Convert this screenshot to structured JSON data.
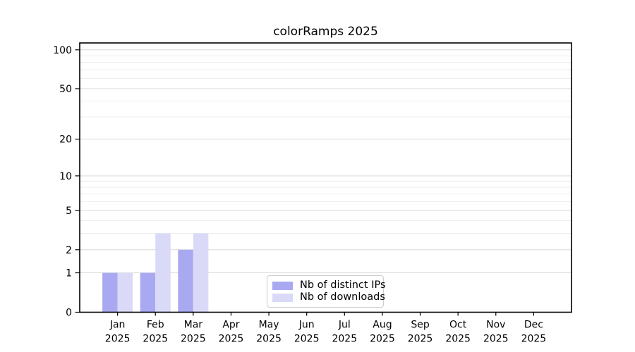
{
  "chart_data": {
    "type": "bar",
    "title": "colorRamps 2025",
    "categories": [
      "Jan",
      "Feb",
      "Mar",
      "Apr",
      "May",
      "Jun",
      "Jul",
      "Aug",
      "Sep",
      "Oct",
      "Nov",
      "Dec"
    ],
    "x_year_label": "2025",
    "series": [
      {
        "name": "Nb of distinct IPs",
        "color": "#a9a9f2",
        "values": [
          1,
          1,
          2,
          0,
          0,
          0,
          0,
          0,
          0,
          0,
          0,
          0
        ]
      },
      {
        "name": "Nb of downloads",
        "color": "#dadaf8",
        "values": [
          1,
          3,
          3,
          0,
          0,
          0,
          0,
          0,
          0,
          0,
          0,
          0
        ]
      }
    ],
    "y_scale": "log1p",
    "y_axis_ticks": [
      0,
      1,
      2,
      5,
      10,
      20,
      50,
      100
    ],
    "y_minor_gridlines": [
      3,
      4,
      6,
      7,
      8,
      9,
      30,
      40,
      60,
      70,
      80,
      90
    ],
    "ylim": [
      0,
      113
    ],
    "grid": true,
    "legend_position": "lower center",
    "colors": {
      "major_grid": "#d9d9d9",
      "minor_grid": "#eeeeee",
      "spine": "#000000",
      "text": "#000000"
    }
  }
}
